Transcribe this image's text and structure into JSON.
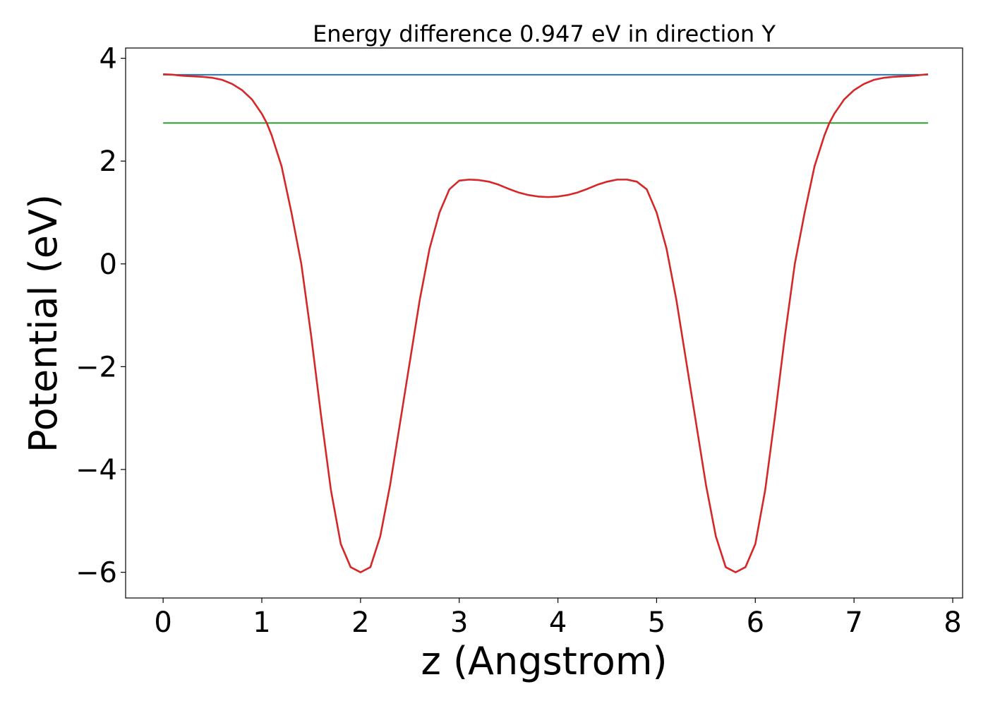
{
  "chart_data": {
    "type": "line",
    "title": "Energy difference 0.947 eV in direction Y",
    "xlabel": "z (Angstrom)",
    "ylabel": "Potential (eV)",
    "xlim": [
      -0.38,
      8.1
    ],
    "ylim": [
      -6.5,
      4.2
    ],
    "xticks": [
      0,
      1,
      2,
      3,
      4,
      5,
      6,
      7,
      8
    ],
    "yticks": [
      -6,
      -4,
      -2,
      0,
      2,
      4
    ],
    "xtick_labels": [
      "0",
      "1",
      "2",
      "3",
      "4",
      "5",
      "6",
      "7",
      "8"
    ],
    "ytick_labels": [
      "−6",
      "−4",
      "−2",
      "0",
      "2",
      "4"
    ],
    "grid": false,
    "series": [
      {
        "color": "#1f77b4",
        "x": [
          0,
          7.75
        ],
        "y": [
          3.68,
          3.68
        ]
      },
      {
        "color": "#2ca02c",
        "x": [
          0,
          7.75
        ],
        "y": [
          2.74,
          2.74
        ]
      },
      {
        "color": "#d62728",
        "x": [
          0,
          0.1,
          0.2,
          0.3,
          0.4,
          0.5,
          0.6,
          0.7,
          0.8,
          0.9,
          1.0,
          1.05,
          1.1,
          1.2,
          1.3,
          1.4,
          1.5,
          1.6,
          1.7,
          1.8,
          1.9,
          2.0,
          2.1,
          2.2,
          2.3,
          2.4,
          2.5,
          2.6,
          2.7,
          2.8,
          2.9,
          3.0,
          3.1,
          3.2,
          3.3,
          3.4,
          3.5,
          3.6,
          3.7,
          3.8,
          3.9,
          4.0,
          4.1,
          4.2,
          4.3,
          4.4,
          4.5,
          4.6,
          4.7,
          4.8,
          4.9,
          5.0,
          5.1,
          5.2,
          5.3,
          5.4,
          5.5,
          5.6,
          5.7,
          5.8,
          5.9,
          6.0,
          6.1,
          6.2,
          6.3,
          6.4,
          6.5,
          6.6,
          6.7,
          6.75,
          6.8,
          6.9,
          7.0,
          7.1,
          7.2,
          7.3,
          7.4,
          7.5,
          7.6,
          7.7,
          7.75
        ],
        "y": [
          3.69,
          3.68,
          3.66,
          3.65,
          3.64,
          3.62,
          3.58,
          3.5,
          3.38,
          3.2,
          2.92,
          2.74,
          2.5,
          1.9,
          1.0,
          0.0,
          -1.4,
          -2.95,
          -4.4,
          -5.45,
          -5.9,
          -6.0,
          -5.9,
          -5.3,
          -4.3,
          -3.1,
          -1.9,
          -0.7,
          0.3,
          1.0,
          1.45,
          1.62,
          1.64,
          1.63,
          1.6,
          1.54,
          1.46,
          1.39,
          1.34,
          1.31,
          1.3,
          1.31,
          1.34,
          1.39,
          1.46,
          1.54,
          1.6,
          1.64,
          1.64,
          1.6,
          1.45,
          1.0,
          0.3,
          -0.7,
          -1.9,
          -3.1,
          -4.3,
          -5.3,
          -5.9,
          -6.0,
          -5.9,
          -5.45,
          -4.4,
          -2.95,
          -1.4,
          0.0,
          1.0,
          1.9,
          2.5,
          2.74,
          2.92,
          3.2,
          3.38,
          3.5,
          3.58,
          3.62,
          3.64,
          3.65,
          3.66,
          3.68,
          3.69
        ]
      }
    ]
  }
}
